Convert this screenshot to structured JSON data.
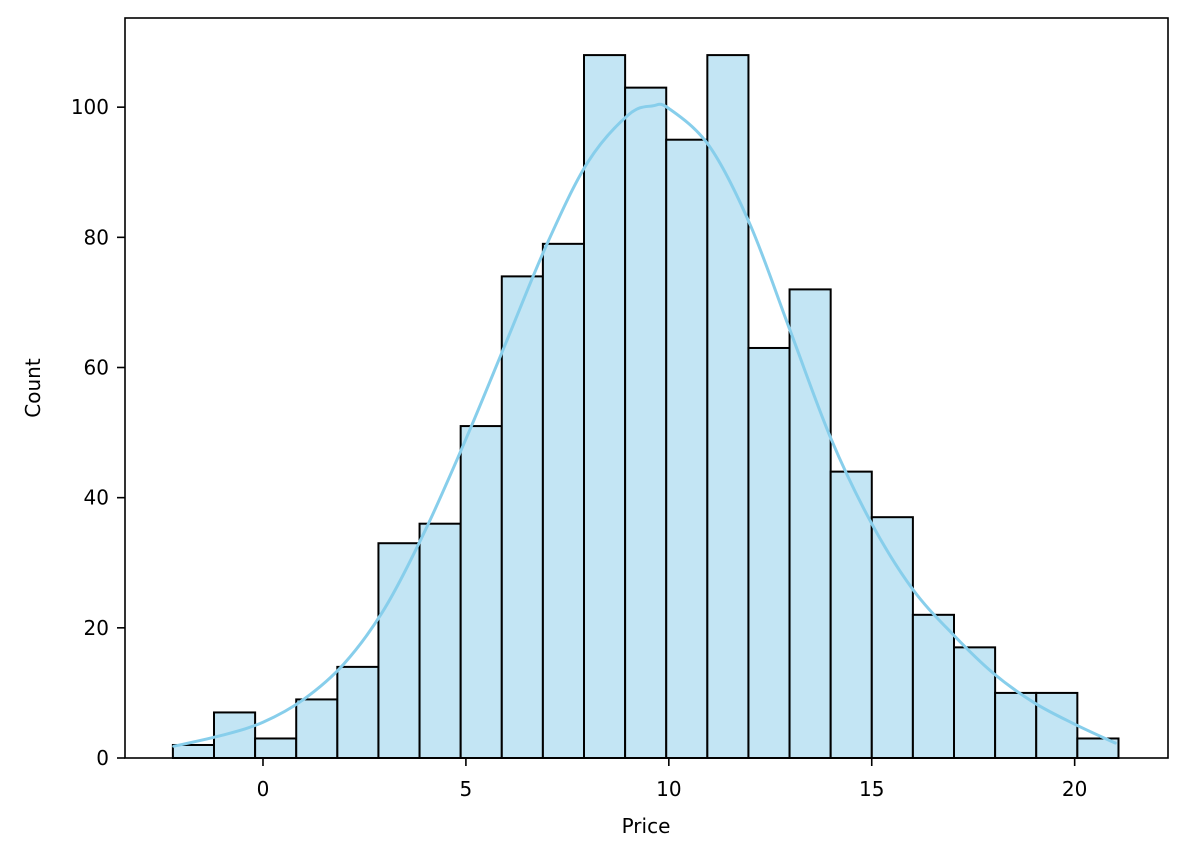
{
  "chart_data": {
    "type": "bar",
    "xlabel": "Price",
    "ylabel": "Count",
    "xlim": [
      -3.4,
      22.3
    ],
    "ylim": [
      0,
      113.7
    ],
    "xticks": [
      0,
      5,
      10,
      15,
      20
    ],
    "yticks": [
      0,
      20,
      40,
      60,
      80,
      100
    ],
    "grid": false,
    "bins": {
      "edges": [
        -2.22,
        -1.207,
        -0.194,
        0.819,
        1.832,
        2.845,
        3.858,
        4.871,
        5.884,
        6.897,
        7.91,
        8.923,
        9.936,
        10.949,
        11.962,
        12.975,
        13.988,
        15.001,
        16.014,
        17.027,
        18.04,
        19.053,
        20.066,
        21.08
      ],
      "counts": [
        2,
        7,
        3,
        9,
        14,
        33,
        36,
        51,
        74,
        79,
        108,
        103,
        95,
        108,
        63,
        72,
        44,
        37,
        22,
        17,
        10,
        10,
        3
      ]
    },
    "kde": {
      "x": [
        -2.2,
        -1,
        0,
        1,
        2,
        3,
        4,
        5,
        6,
        7,
        8,
        9,
        9.6,
        10,
        11,
        12,
        13,
        14,
        15,
        16,
        17,
        18,
        19,
        20,
        21
      ],
      "y": [
        1.8,
        3.5,
        5.5,
        9.0,
        14.5,
        23.0,
        35.0,
        49.0,
        64.0,
        79.0,
        91.5,
        98.8,
        100.2,
        99.8,
        94.0,
        82.0,
        65.5,
        49.0,
        36.0,
        26.0,
        19.0,
        13.0,
        8.5,
        5.2,
        2.3
      ]
    },
    "colors": {
      "bar_fill": "#c3e5f4",
      "bar_edge": "#000000",
      "kde_line": "#87ceeb"
    }
  }
}
